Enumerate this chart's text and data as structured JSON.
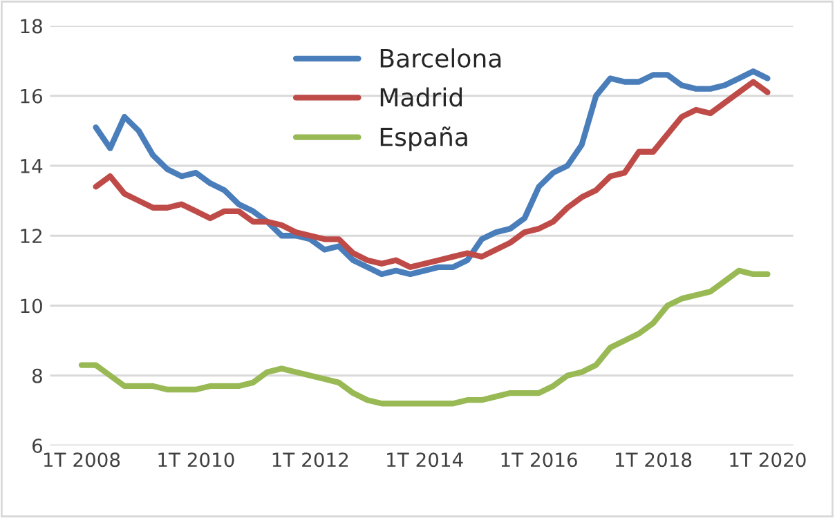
{
  "chart_data": {
    "type": "line",
    "categories": [
      "1T 2008",
      null,
      null,
      null,
      null,
      null,
      null,
      null,
      "1T 2010",
      null,
      null,
      null,
      null,
      null,
      null,
      null,
      "1T 2012",
      null,
      null,
      null,
      null,
      null,
      null,
      null,
      "1T 2014",
      null,
      null,
      null,
      null,
      null,
      null,
      null,
      "1T 2016",
      null,
      null,
      null,
      null,
      null,
      null,
      null,
      "1T 2018",
      null,
      null,
      null,
      null,
      null,
      null,
      null,
      "1T 2020"
    ],
    "series": [
      {
        "name": "Barcelona",
        "color": "#4a7ebb",
        "values": [
          null,
          15.1,
          14.5,
          15.4,
          15.0,
          14.3,
          13.9,
          13.7,
          13.8,
          13.5,
          13.3,
          12.9,
          12.7,
          12.4,
          12.0,
          12.0,
          11.9,
          11.6,
          11.7,
          11.3,
          11.1,
          10.9,
          11.0,
          10.9,
          11.0,
          11.1,
          11.1,
          11.3,
          11.9,
          12.1,
          12.2,
          12.5,
          13.4,
          13.8,
          14.0,
          14.6,
          16.0,
          16.5,
          16.4,
          16.4,
          16.6,
          16.6,
          16.3,
          16.2,
          16.2,
          16.3,
          16.5,
          16.7,
          16.5
        ]
      },
      {
        "name": "Madrid",
        "color": "#be4b48",
        "values": [
          null,
          13.4,
          13.7,
          13.2,
          13.0,
          12.8,
          12.8,
          12.9,
          12.7,
          12.5,
          12.7,
          12.7,
          12.4,
          12.4,
          12.3,
          12.1,
          12.0,
          11.9,
          11.9,
          11.5,
          11.3,
          11.2,
          11.3,
          11.1,
          11.2,
          11.3,
          11.4,
          11.5,
          11.4,
          11.6,
          11.8,
          12.1,
          12.2,
          12.4,
          12.8,
          13.1,
          13.3,
          13.7,
          13.8,
          14.4,
          14.4,
          14.9,
          15.4,
          15.6,
          15.5,
          15.8,
          16.1,
          16.4,
          16.1
        ]
      },
      {
        "name": "España",
        "color": "#98b954",
        "values": [
          8.3,
          8.3,
          8.0,
          7.7,
          7.7,
          7.7,
          7.6,
          7.6,
          7.6,
          7.7,
          7.7,
          7.7,
          7.8,
          8.1,
          8.2,
          8.1,
          8.0,
          7.9,
          7.8,
          7.5,
          7.3,
          7.2,
          7.2,
          7.2,
          7.2,
          7.2,
          7.2,
          7.3,
          7.3,
          7.4,
          7.5,
          7.5,
          7.5,
          7.7,
          8.0,
          8.1,
          8.3,
          8.8,
          9.0,
          9.2,
          9.5,
          10.0,
          10.2,
          10.3,
          10.4,
          10.7,
          11.0,
          10.9,
          10.9
        ]
      }
    ],
    "ylim": [
      6,
      18
    ],
    "yticks": [
      6,
      8,
      10,
      12,
      14,
      16,
      18
    ],
    "grid": "y",
    "legend": "top",
    "marker": "none",
    "line_style": "solid"
  }
}
